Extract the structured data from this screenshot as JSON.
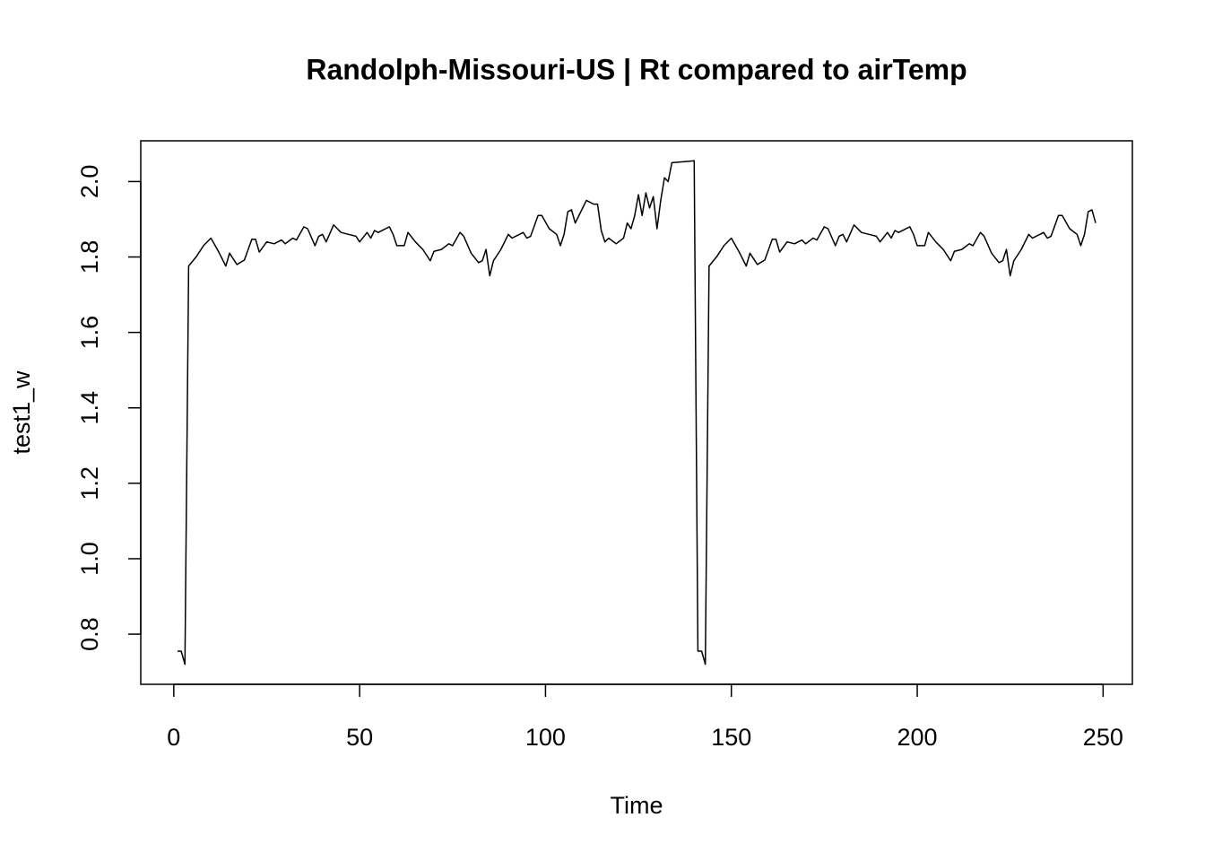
{
  "chart_data": {
    "type": "line",
    "title": "Randolph-Missouri-US | Rt compared to airTemp",
    "x_label": "Time",
    "y_label": "test1_w",
    "color": "#000000",
    "xlim": [
      -8.88,
      257.88
    ],
    "ylim": [
      0.667,
      2.108
    ],
    "xticks": [
      0,
      50,
      100,
      150,
      200,
      250
    ],
    "yticks": [
      0.8,
      {
        "value": 1,
        "label": "1.0"
      },
      1.2,
      1.4,
      1.6,
      1.8,
      {
        "value": 2,
        "label": "2.0"
      }
    ],
    "x": [
      1,
      2,
      3,
      4,
      6,
      8,
      10,
      12,
      14,
      15,
      17,
      19,
      21,
      22,
      23,
      25,
      27,
      29,
      30,
      32,
      33,
      35,
      36,
      38,
      39,
      40,
      41,
      43,
      45,
      47,
      49,
      50,
      52,
      53,
      54,
      55,
      56,
      58,
      59,
      60,
      62,
      63,
      65,
      67,
      69,
      70,
      72,
      74,
      75,
      77,
      78,
      80,
      82,
      83,
      84,
      85,
      86,
      88,
      90,
      91,
      93,
      94,
      95,
      96,
      98,
      99,
      101,
      103,
      104,
      105,
      106,
      107,
      108,
      110,
      111,
      113,
      114,
      115,
      116,
      117,
      119,
      121,
      122,
      123,
      124,
      125,
      126,
      127,
      128,
      129,
      130,
      131,
      132,
      133,
      134,
      140,
      141,
      142,
      143,
      144,
      146,
      148,
      150,
      152,
      154,
      155,
      157,
      159,
      161,
      162,
      163,
      165,
      167,
      169,
      170,
      172,
      173,
      175,
      176,
      178,
      179,
      180,
      181,
      183,
      185,
      187,
      189,
      190,
      192,
      193,
      194,
      195,
      196,
      198,
      199,
      200,
      202,
      203,
      205,
      207,
      209,
      210,
      212,
      214,
      215,
      217,
      218,
      220,
      222,
      223,
      224,
      225,
      226,
      228,
      230,
      231,
      233,
      234,
      235,
      236,
      238,
      239,
      241,
      243,
      244,
      245,
      246,
      247,
      248
    ],
    "values": [
      0.755,
      0.755,
      0.72,
      1.776,
      1.8,
      1.83,
      1.85,
      1.815,
      1.776,
      1.81,
      1.78,
      1.792,
      1.847,
      1.847,
      1.813,
      1.84,
      1.835,
      1.845,
      1.835,
      1.85,
      1.845,
      1.88,
      1.875,
      1.83,
      1.855,
      1.86,
      1.84,
      1.885,
      1.865,
      1.86,
      1.855,
      1.84,
      1.865,
      1.85,
      1.87,
      1.865,
      1.87,
      1.88,
      1.86,
      1.83,
      1.83,
      1.865,
      1.84,
      1.82,
      1.79,
      1.815,
      1.82,
      1.835,
      1.83,
      1.865,
      1.855,
      1.81,
      1.785,
      1.79,
      1.82,
      1.75,
      1.79,
      1.82,
      1.86,
      1.85,
      1.86,
      1.865,
      1.85,
      1.855,
      1.91,
      1.91,
      1.875,
      1.86,
      1.83,
      1.86,
      1.92,
      1.925,
      1.89,
      1.93,
      1.95,
      1.94,
      1.94,
      1.87,
      1.84,
      1.85,
      1.835,
      1.85,
      1.89,
      1.875,
      1.91,
      1.965,
      1.91,
      1.97,
      1.93,
      1.96,
      1.875,
      1.95,
      2.01,
      2.0,
      2.05,
      2.055,
      0.755,
      0.755,
      0.72,
      1.776,
      1.8,
      1.83,
      1.85,
      1.815,
      1.776,
      1.81,
      1.78,
      1.792,
      1.847,
      1.847,
      1.813,
      1.84,
      1.835,
      1.845,
      1.835,
      1.85,
      1.845,
      1.88,
      1.875,
      1.83,
      1.855,
      1.86,
      1.84,
      1.885,
      1.865,
      1.86,
      1.855,
      1.84,
      1.865,
      1.85,
      1.87,
      1.865,
      1.87,
      1.88,
      1.86,
      1.83,
      1.83,
      1.865,
      1.84,
      1.82,
      1.79,
      1.815,
      1.82,
      1.835,
      1.83,
      1.865,
      1.855,
      1.81,
      1.785,
      1.79,
      1.82,
      1.75,
      1.79,
      1.82,
      1.86,
      1.85,
      1.86,
      1.865,
      1.85,
      1.855,
      1.91,
      1.91,
      1.875,
      1.86,
      1.83,
      1.86,
      1.92,
      1.925,
      1.89
    ]
  }
}
